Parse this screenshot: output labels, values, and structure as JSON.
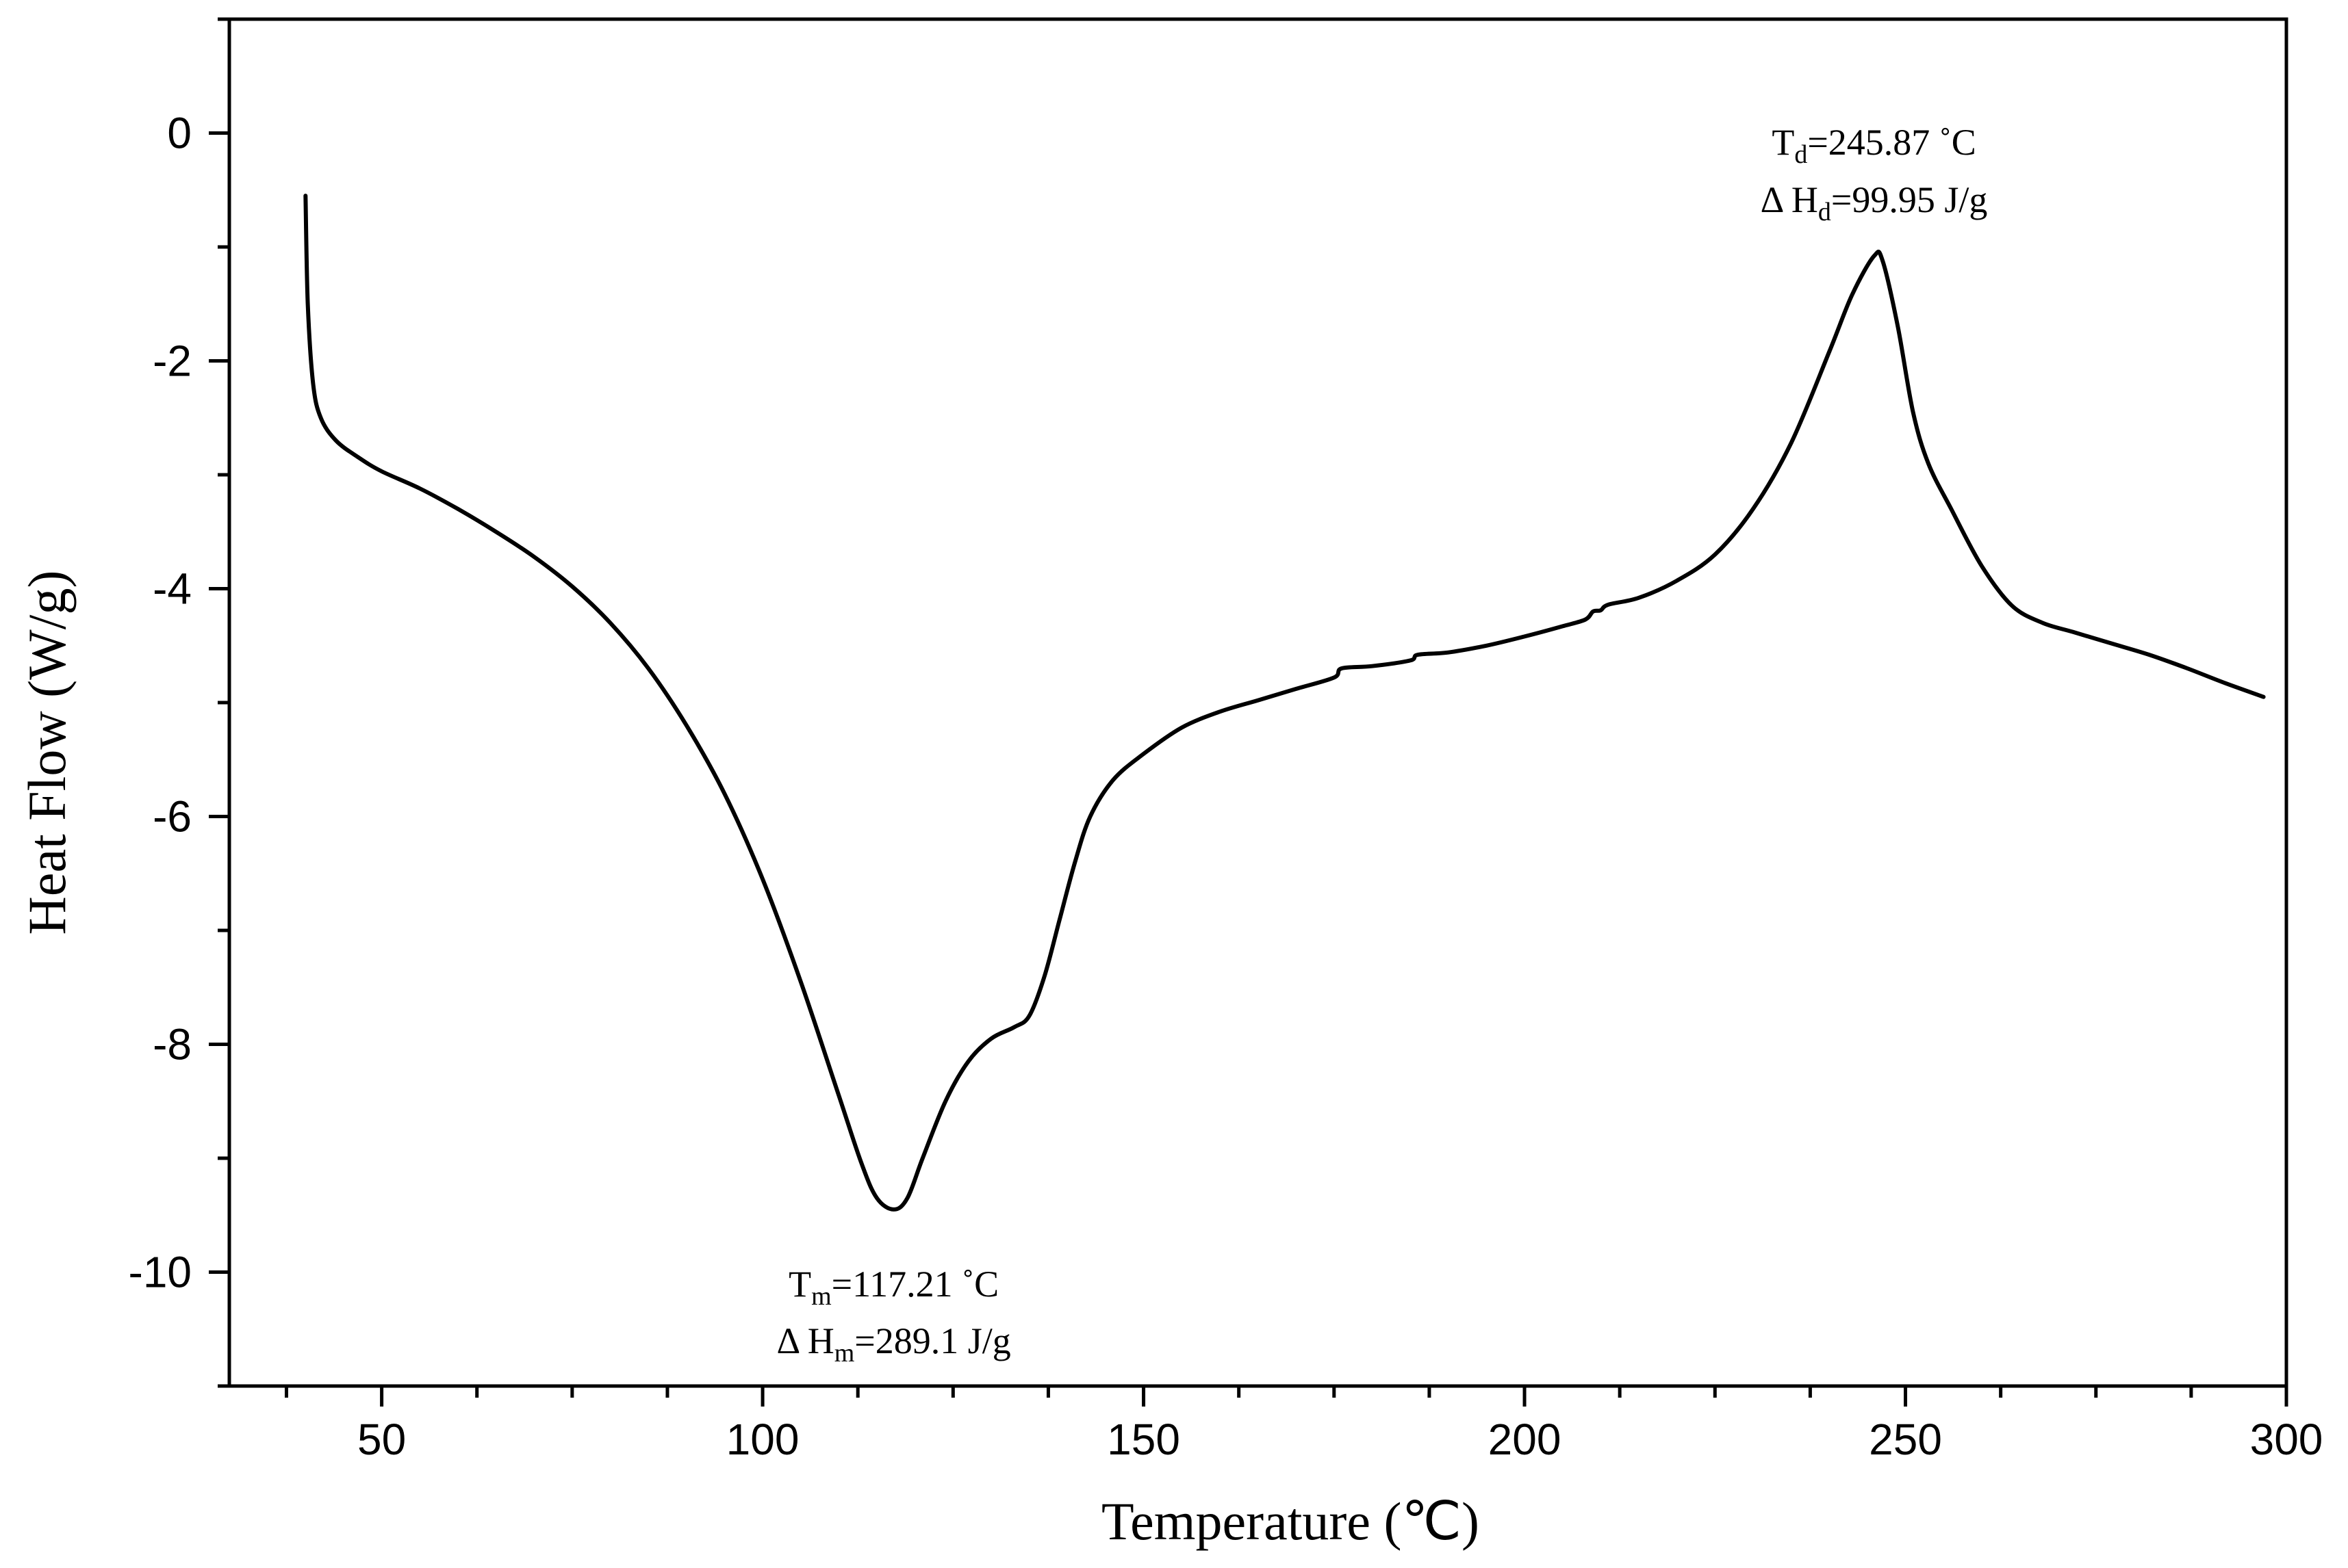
{
  "chart_data": {
    "type": "line",
    "xlabel": "Temperature (℃)",
    "ylabel": "Heat Flow (W/g)",
    "xlim": [
      30,
      300
    ],
    "ylim": [
      -11,
      1
    ],
    "x_ticks": [
      50,
      100,
      150,
      200,
      250,
      300
    ],
    "x_tick_labels": [
      "50",
      "100",
      "150",
      "200",
      "250",
      "300"
    ],
    "y_ticks": [
      0,
      -2,
      -4,
      -6,
      -8,
      -10
    ],
    "y_tick_labels": [
      "0",
      "-2",
      "-4",
      "-6",
      "-8",
      "-10"
    ],
    "x_minor_step": 12.5,
    "y_minor_step": 1,
    "grid": false,
    "series": [
      {
        "color": "#000000",
        "points": [
          [
            40,
            -0.55
          ],
          [
            40.3,
            -1.5
          ],
          [
            41,
            -2.2
          ],
          [
            42,
            -2.5
          ],
          [
            44,
            -2.7
          ],
          [
            47,
            -2.85
          ],
          [
            50,
            -2.97
          ],
          [
            55,
            -3.12
          ],
          [
            60,
            -3.3
          ],
          [
            65,
            -3.5
          ],
          [
            70,
            -3.72
          ],
          [
            75,
            -3.98
          ],
          [
            80,
            -4.3
          ],
          [
            85,
            -4.7
          ],
          [
            90,
            -5.2
          ],
          [
            95,
            -5.8
          ],
          [
            100,
            -6.55
          ],
          [
            105,
            -7.45
          ],
          [
            110,
            -8.45
          ],
          [
            113,
            -9.05
          ],
          [
            115,
            -9.35
          ],
          [
            117.21,
            -9.45
          ],
          [
            119,
            -9.35
          ],
          [
            121,
            -9.0
          ],
          [
            124,
            -8.5
          ],
          [
            127,
            -8.15
          ],
          [
            130,
            -7.95
          ],
          [
            133,
            -7.85
          ],
          [
            135,
            -7.75
          ],
          [
            137,
            -7.4
          ],
          [
            139,
            -6.9
          ],
          [
            141,
            -6.4
          ],
          [
            143,
            -6.0
          ],
          [
            146,
            -5.68
          ],
          [
            150,
            -5.45
          ],
          [
            155,
            -5.22
          ],
          [
            160,
            -5.08
          ],
          [
            165,
            -4.98
          ],
          [
            170,
            -4.88
          ],
          [
            175,
            -4.78
          ],
          [
            176,
            -4.7
          ],
          [
            180,
            -4.68
          ],
          [
            185,
            -4.63
          ],
          [
            186,
            -4.58
          ],
          [
            190,
            -4.56
          ],
          [
            195,
            -4.5
          ],
          [
            200,
            -4.42
          ],
          [
            205,
            -4.33
          ],
          [
            208,
            -4.27
          ],
          [
            209,
            -4.2
          ],
          [
            210,
            -4.19
          ],
          [
            211,
            -4.14
          ],
          [
            215,
            -4.08
          ],
          [
            220,
            -3.93
          ],
          [
            225,
            -3.7
          ],
          [
            230,
            -3.3
          ],
          [
            235,
            -2.72
          ],
          [
            240,
            -1.92
          ],
          [
            243,
            -1.42
          ],
          [
            245.87,
            -1.08
          ],
          [
            247,
            -1.12
          ],
          [
            249,
            -1.7
          ],
          [
            251,
            -2.45
          ],
          [
            253,
            -2.9
          ],
          [
            256,
            -3.3
          ],
          [
            260,
            -3.8
          ],
          [
            264,
            -4.15
          ],
          [
            268,
            -4.3
          ],
          [
            272,
            -4.38
          ],
          [
            277,
            -4.48
          ],
          [
            282,
            -4.58
          ],
          [
            287,
            -4.7
          ],
          [
            292,
            -4.83
          ],
          [
            297,
            -4.95
          ]
        ]
      }
    ],
    "annotations": [
      {
        "x": 245.87,
        "y": -1.08,
        "line1": {
          "base": "T",
          "sub": "d",
          "rest": "=245.87 ˚C"
        },
        "line2": {
          "base": "Δ H",
          "sub": "d",
          "rest": "=99.95 J/g"
        }
      },
      {
        "x": 117.21,
        "y": -9.45,
        "line1": {
          "base": "T",
          "sub": "m",
          "rest": "=117.21 ˚C"
        },
        "line2": {
          "base": "Δ H",
          "sub": "m",
          "rest": "=289.1 J/g"
        }
      }
    ]
  }
}
